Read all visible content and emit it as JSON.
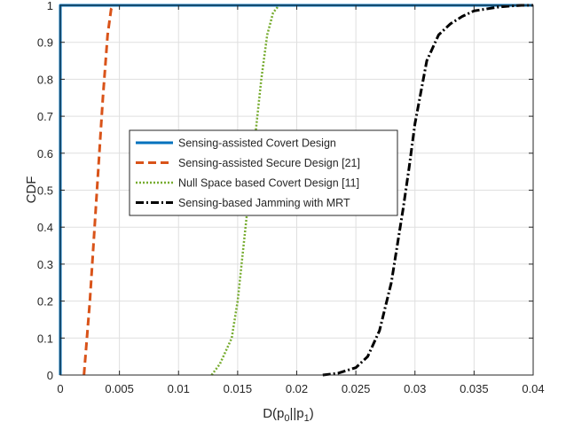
{
  "chart_data": {
    "type": "line",
    "xlabel": "D(p0||p1)",
    "xlabel_parts": {
      "main": "D(p",
      "sub1": "0",
      "mid": "||p",
      "sub2": "1",
      "end": ")"
    },
    "ylabel": "CDF",
    "xlim": [
      0,
      0.04
    ],
    "ylim": [
      0,
      1
    ],
    "xticks": [
      0,
      0.005,
      0.01,
      0.015,
      0.02,
      0.025,
      0.03,
      0.035,
      0.04
    ],
    "xtick_labels": [
      "0",
      "0.005",
      "0.01",
      "0.015",
      "0.02",
      "0.025",
      "0.03",
      "0.035",
      "0.04"
    ],
    "yticks": [
      0,
      0.1,
      0.2,
      0.3,
      0.4,
      0.5,
      0.6,
      0.7,
      0.8,
      0.9,
      1
    ],
    "ytick_labels": [
      "0",
      "0.1",
      "0.2",
      "0.3",
      "0.4",
      "0.5",
      "0.6",
      "0.7",
      "0.8",
      "0.9",
      "1"
    ],
    "grid": true,
    "legend_position": "center-left",
    "series": [
      {
        "name": "Sensing-assisted Covert Design",
        "color": "#0072BD",
        "style": "solid",
        "x": [
          0,
          0,
          0.04
        ],
        "y": [
          0,
          1,
          1
        ]
      },
      {
        "name": "Sensing-assisted Secure Design [21]",
        "color": "#D95319",
        "style": "dashed",
        "x": [
          0.002,
          0.0025,
          0.003,
          0.0033,
          0.0036,
          0.004,
          0.0043,
          0.0045
        ],
        "y": [
          0,
          0.2,
          0.45,
          0.6,
          0.75,
          0.92,
          0.99,
          1
        ]
      },
      {
        "name": "Null Space based Covert Design [11]",
        "color": "#77AC30",
        "style": "dotted",
        "x": [
          0.0128,
          0.0135,
          0.0145,
          0.015,
          0.0155,
          0.016,
          0.0165,
          0.017,
          0.0175,
          0.018,
          0.0185
        ],
        "y": [
          0,
          0.03,
          0.1,
          0.2,
          0.35,
          0.5,
          0.65,
          0.8,
          0.92,
          0.98,
          1
        ]
      },
      {
        "name": "Sensing-based Jamming with MRT",
        "color": "#000000",
        "style": "dashdot",
        "x": [
          0.0222,
          0.0235,
          0.025,
          0.026,
          0.027,
          0.028,
          0.0285,
          0.029,
          0.0295,
          0.03,
          0.031,
          0.032,
          0.033,
          0.034,
          0.035,
          0.036,
          0.037,
          0.038,
          0.039,
          0.04
        ],
        "y": [
          0,
          0.005,
          0.02,
          0.05,
          0.12,
          0.25,
          0.35,
          0.45,
          0.56,
          0.68,
          0.85,
          0.92,
          0.95,
          0.97,
          0.985,
          0.99,
          0.995,
          0.998,
          1,
          1
        ]
      }
    ]
  }
}
